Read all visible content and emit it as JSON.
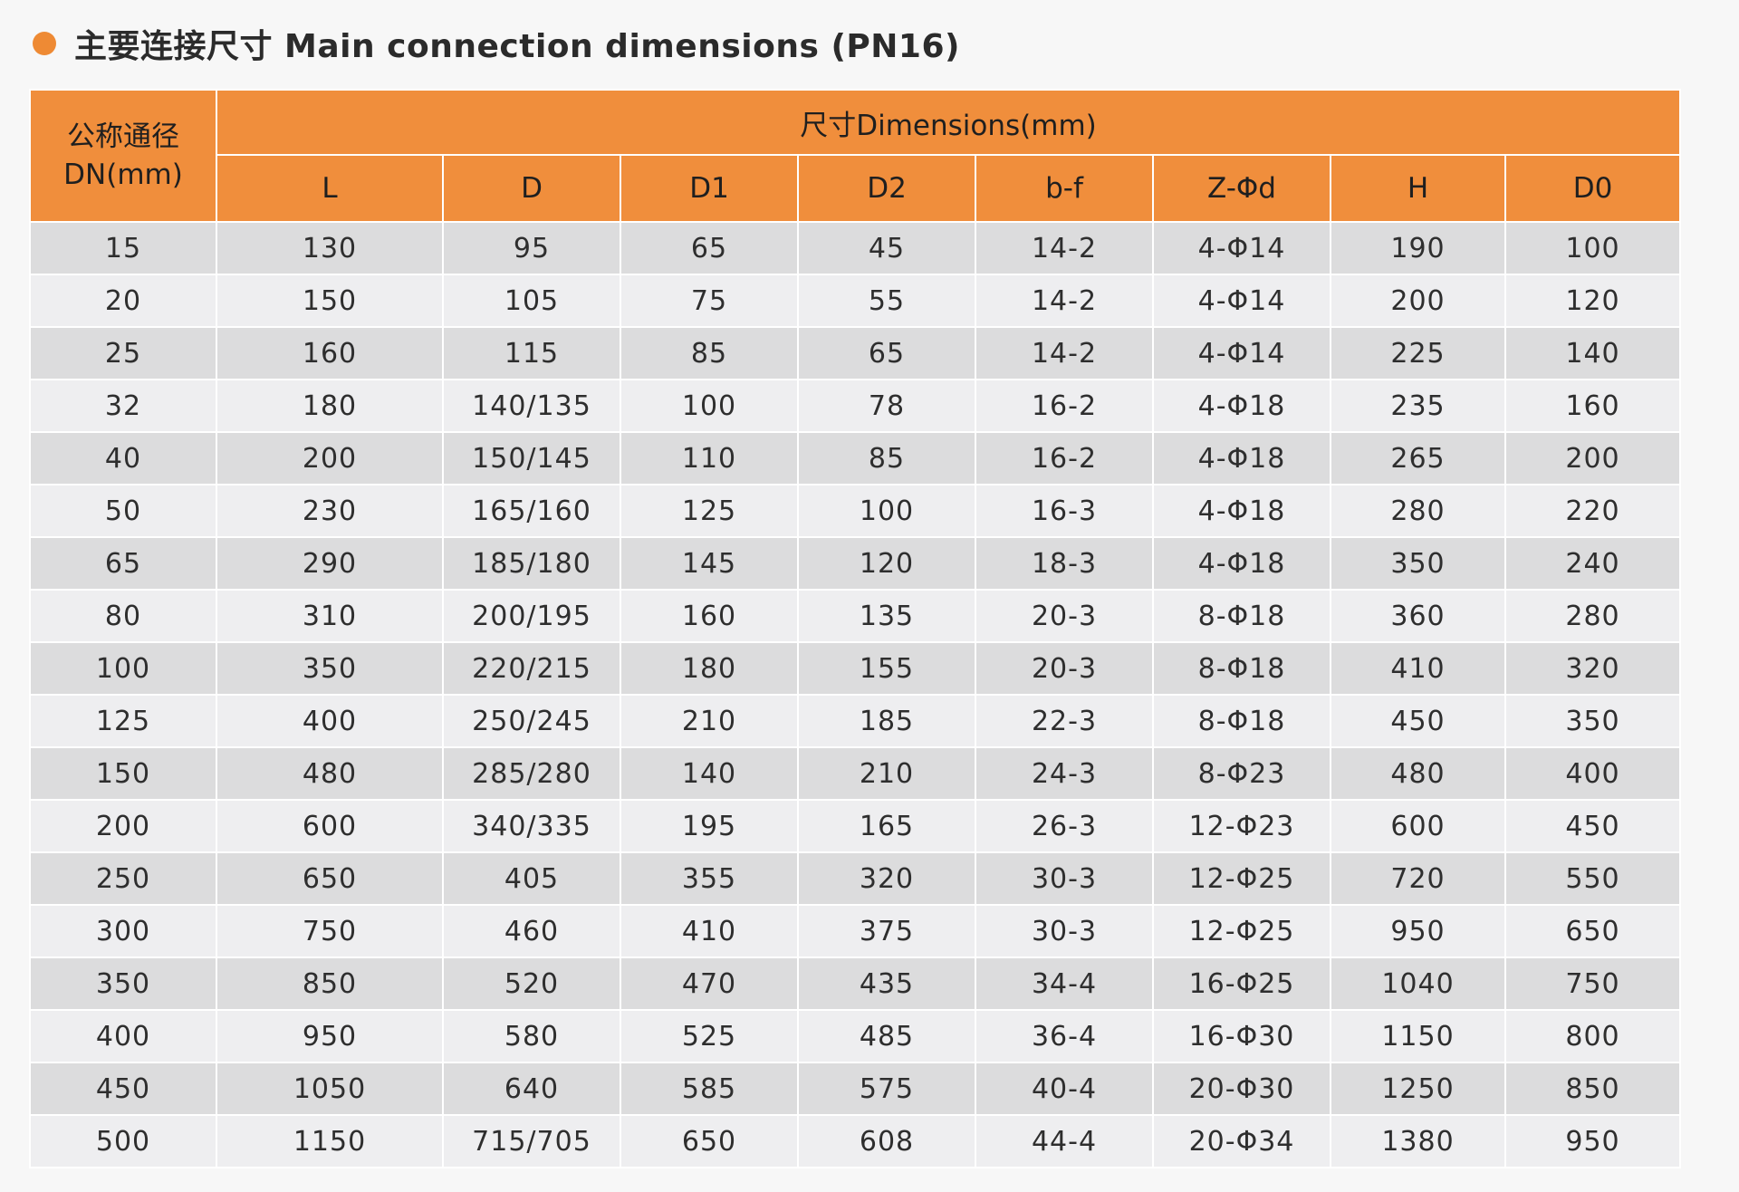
{
  "title": "主要连接尺寸 Main connection dimensions (PN16)",
  "table": {
    "dn_header_line1": "公称通径",
    "dn_header_line2": "DN(mm)",
    "group_header": "尺寸Dimensions(mm)",
    "columns": [
      "L",
      "D",
      "D1",
      "D2",
      "b-f",
      "Z-Φd",
      "H",
      "D0"
    ],
    "rows": [
      [
        "15",
        "130",
        "95",
        "65",
        "45",
        "14-2",
        "4-Φ14",
        "190",
        "100"
      ],
      [
        "20",
        "150",
        "105",
        "75",
        "55",
        "14-2",
        "4-Φ14",
        "200",
        "120"
      ],
      [
        "25",
        "160",
        "115",
        "85",
        "65",
        "14-2",
        "4-Φ14",
        "225",
        "140"
      ],
      [
        "32",
        "180",
        "140/135",
        "100",
        "78",
        "16-2",
        "4-Φ18",
        "235",
        "160"
      ],
      [
        "40",
        "200",
        "150/145",
        "110",
        "85",
        "16-2",
        "4-Φ18",
        "265",
        "200"
      ],
      [
        "50",
        "230",
        "165/160",
        "125",
        "100",
        "16-3",
        "4-Φ18",
        "280",
        "220"
      ],
      [
        "65",
        "290",
        "185/180",
        "145",
        "120",
        "18-3",
        "4-Φ18",
        "350",
        "240"
      ],
      [
        "80",
        "310",
        "200/195",
        "160",
        "135",
        "20-3",
        "8-Φ18",
        "360",
        "280"
      ],
      [
        "100",
        "350",
        "220/215",
        "180",
        "155",
        "20-3",
        "8-Φ18",
        "410",
        "320"
      ],
      [
        "125",
        "400",
        "250/245",
        "210",
        "185",
        "22-3",
        "8-Φ18",
        "450",
        "350"
      ],
      [
        "150",
        "480",
        "285/280",
        "140",
        "210",
        "24-3",
        "8-Φ23",
        "480",
        "400"
      ],
      [
        "200",
        "600",
        "340/335",
        "195",
        "165",
        "26-3",
        "12-Φ23",
        "600",
        "450"
      ],
      [
        "250",
        "650",
        "405",
        "355",
        "320",
        "30-3",
        "12-Φ25",
        "720",
        "550"
      ],
      [
        "300",
        "750",
        "460",
        "410",
        "375",
        "30-3",
        "12-Φ25",
        "950",
        "650"
      ],
      [
        "350",
        "850",
        "520",
        "470",
        "435",
        "34-4",
        "16-Φ25",
        "1040",
        "750"
      ],
      [
        "400",
        "950",
        "580",
        "525",
        "485",
        "36-4",
        "16-Φ30",
        "1150",
        "800"
      ],
      [
        "450",
        "1050",
        "640",
        "585",
        "575",
        "40-4",
        "20-Φ30",
        "1250",
        "850"
      ],
      [
        "500",
        "1150",
        "715/705",
        "650",
        "608",
        "44-4",
        "20-Φ34",
        "1380",
        "950"
      ]
    ]
  },
  "colors": {
    "accent": "#ee8a34",
    "header_bg": "#f08e3c",
    "row_dark": "#dcdcdd",
    "row_light": "#eeeef0"
  }
}
